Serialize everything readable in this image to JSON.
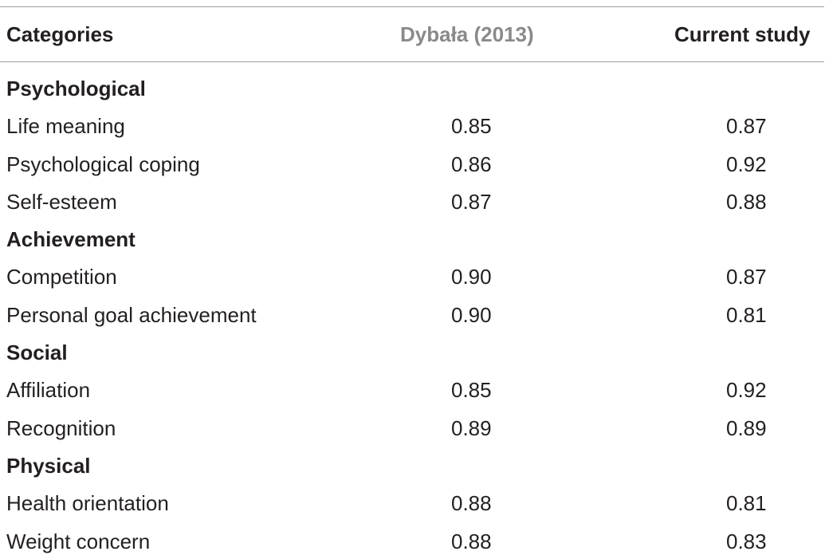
{
  "header": {
    "categories": "Categories",
    "dybala": "Dybała (2013)",
    "current": "Current study"
  },
  "sections": [
    {
      "title": "Psychological",
      "items": [
        {
          "label": "Life meaning",
          "dybala": "0.85",
          "current": "0.87"
        },
        {
          "label": "Psychological coping",
          "dybala": "0.86",
          "current": "0.92"
        },
        {
          "label": "Self-esteem",
          "dybala": "0.87",
          "current": "0.88"
        }
      ]
    },
    {
      "title": "Achievement",
      "items": [
        {
          "label": "Competition",
          "dybala": "0.90",
          "current": "0.87"
        },
        {
          "label": "Personal goal achievement",
          "dybala": "0.90",
          "current": "0.81"
        }
      ]
    },
    {
      "title": "Social",
      "items": [
        {
          "label": "Affiliation",
          "dybala": "0.85",
          "current": "0.92"
        },
        {
          "label": "Recognition",
          "dybala": "0.89",
          "current": "0.89"
        }
      ]
    },
    {
      "title": "Physical",
      "items": [
        {
          "label": "Health orientation",
          "dybala": "0.88",
          "current": "0.81"
        },
        {
          "label": "Weight concern",
          "dybala": "0.88",
          "current": "0.83"
        }
      ]
    }
  ]
}
